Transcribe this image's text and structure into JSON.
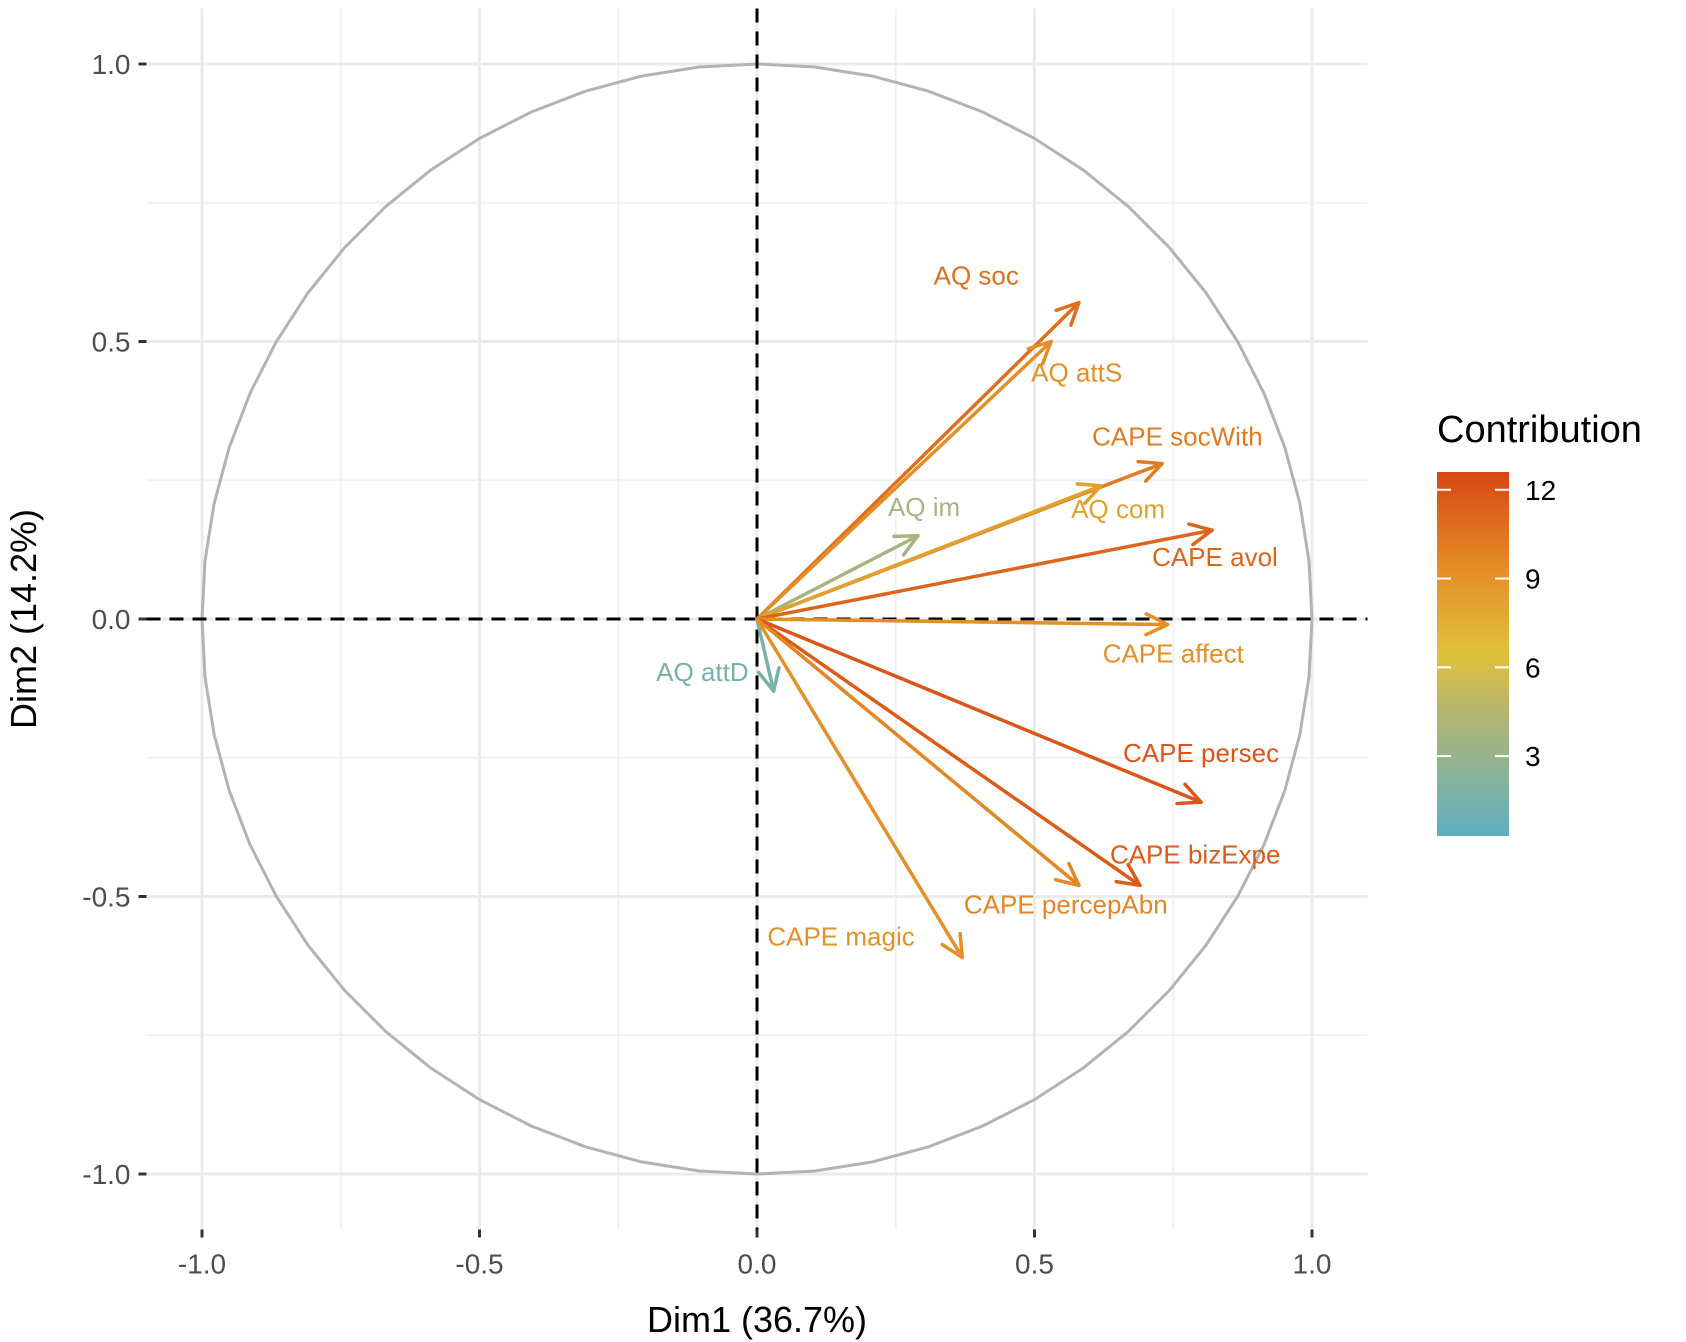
{
  "chart_data": {
    "type": "scatter",
    "subtype": "pca-variable-correlation-circle",
    "xlabel": "Dim1 (36.7%)",
    "ylabel": "Dim2 (14.2%)",
    "xlim": [
      -1.1,
      1.1
    ],
    "ylim": [
      -1.1,
      1.1
    ],
    "x_ticks": [
      -1.0,
      -0.5,
      0.0,
      0.5,
      1.0
    ],
    "y_ticks": [
      -1.0,
      -0.5,
      0.0,
      0.5,
      1.0
    ],
    "x_tick_labels": [
      "-1.0",
      "-0.5",
      "0.0",
      "0.5",
      "1.0"
    ],
    "y_tick_labels": [
      "-1.0",
      "-0.5",
      "0.0",
      "0.5",
      "1.0"
    ],
    "grid": true,
    "legend": {
      "title": "Contribution",
      "position": "right",
      "range": [
        0.3,
        12.6
      ],
      "ticks": [
        3,
        6,
        9,
        12
      ],
      "tick_labels": [
        "3",
        "6",
        "9",
        "12"
      ],
      "colors": [
        "#5FAFC0",
        "#E0C13A",
        "#E48A24",
        "#D84614"
      ]
    },
    "variables": [
      {
        "name": "AQ soc",
        "x": 0.58,
        "y": 0.57,
        "contribution": 10.5
      },
      {
        "name": "AQ attS",
        "x": 0.53,
        "y": 0.5,
        "contribution": 8.8
      },
      {
        "name": "CAPE socWith",
        "x": 0.73,
        "y": 0.28,
        "contribution": 9.8
      },
      {
        "name": "AQ im",
        "x": 0.29,
        "y": 0.15,
        "contribution": 2.8
      },
      {
        "name": "AQ com",
        "x": 0.62,
        "y": 0.24,
        "contribution": 7.8
      },
      {
        "name": "CAPE avol",
        "x": 0.82,
        "y": 0.16,
        "contribution": 11.0
      },
      {
        "name": "CAPE affect",
        "x": 0.74,
        "y": -0.01,
        "contribution": 8.8
      },
      {
        "name": "AQ attD",
        "x": 0.03,
        "y": -0.13,
        "contribution": 1.2
      },
      {
        "name": "CAPE persec",
        "x": 0.8,
        "y": -0.33,
        "contribution": 11.8
      },
      {
        "name": "CAPE bizExpe",
        "x": 0.69,
        "y": -0.48,
        "contribution": 11.5
      },
      {
        "name": "CAPE percepAbn",
        "x": 0.58,
        "y": -0.48,
        "contribution": 9.2
      },
      {
        "name": "CAPE magic",
        "x": 0.37,
        "y": -0.61,
        "contribution": 8.6
      }
    ]
  }
}
